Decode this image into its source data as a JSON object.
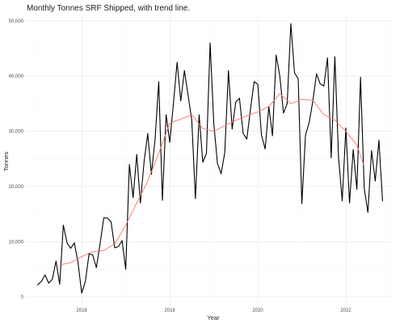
{
  "chart_data": {
    "type": "line",
    "title": "Monthly Tonnes SRF Shipped, with trend line.",
    "xlabel": "Year",
    "ylabel": "Tonnes",
    "xlim": [
      2014.75,
      2023.1
    ],
    "ylim": [
      -1500,
      51000
    ],
    "x_ticks": [
      2016,
      2018,
      2020,
      2022
    ],
    "x_tick_labels": [
      "2016",
      "2018",
      "2020",
      "2022"
    ],
    "y_ticks": [
      0,
      10000,
      20000,
      30000,
      40000,
      50000
    ],
    "y_tick_labels": [
      "0",
      "10,000",
      "20,000",
      "30,000",
      "40,000",
      "50,000"
    ],
    "grid": true,
    "legend": "none",
    "colors": {
      "series": "#000000",
      "trend": "#f8766d",
      "grid": "#ebebeb"
    },
    "series": [
      {
        "role": "data",
        "x": [
          2015.0,
          2015.083,
          2015.167,
          2015.25,
          2015.333,
          2015.417,
          2015.5,
          2015.583,
          2015.667,
          2015.75,
          2015.833,
          2015.917,
          2016.0,
          2016.083,
          2016.167,
          2016.25,
          2016.333,
          2016.417,
          2016.5,
          2016.583,
          2016.667,
          2016.75,
          2016.833,
          2016.917,
          2017.0,
          2017.083,
          2017.167,
          2017.25,
          2017.333,
          2017.417,
          2017.5,
          2017.583,
          2017.667,
          2017.75,
          2017.833,
          2017.917,
          2018.0,
          2018.083,
          2018.167,
          2018.25,
          2018.333,
          2018.417,
          2018.5,
          2018.583,
          2018.667,
          2018.75,
          2018.833,
          2018.917,
          2019.0,
          2019.083,
          2019.167,
          2019.25,
          2019.333,
          2019.417,
          2019.5,
          2019.583,
          2019.667,
          2019.75,
          2019.833,
          2019.917,
          2020.0,
          2020.083,
          2020.167,
          2020.25,
          2020.333,
          2020.417,
          2020.5,
          2020.583,
          2020.667,
          2020.75,
          2020.833,
          2020.917,
          2021.0,
          2021.083,
          2021.167,
          2021.25,
          2021.333,
          2021.417,
          2021.5,
          2021.583,
          2021.667,
          2021.75,
          2021.833,
          2021.917,
          2022.0,
          2022.083,
          2022.167,
          2022.25,
          2022.333,
          2022.417,
          2022.5,
          2022.583,
          2022.667,
          2022.75,
          2022.833
        ],
        "values": [
          2200,
          2800,
          4000,
          2500,
          3200,
          6500,
          2300,
          13000,
          9800,
          8800,
          9800,
          6200,
          700,
          2800,
          7800,
          7600,
          5300,
          9600,
          14300,
          14300,
          13600,
          8900,
          9100,
          10200,
          5000,
          24000,
          18000,
          25800,
          17000,
          24500,
          29600,
          22200,
          28600,
          39000,
          17500,
          33000,
          28000,
          35000,
          42500,
          35500,
          41000,
          36500,
          32000,
          17800,
          33000,
          24400,
          26000,
          46000,
          31400,
          24200,
          22300,
          26200,
          41000,
          30400,
          35300,
          36000,
          29600,
          28600,
          34000,
          39000,
          38500,
          29300,
          26800,
          34500,
          29200,
          43800,
          40000,
          33300,
          35000,
          49500,
          40600,
          39500,
          16900,
          29300,
          31600,
          35500,
          40400,
          38600,
          38200,
          43300,
          25200,
          43500,
          25400,
          17400,
          30600,
          17000,
          26700,
          19500,
          39800,
          19700,
          15300,
          26500,
          21000,
          28400,
          17400
        ]
      },
      {
        "role": "trend",
        "x": [
          2015.5,
          2015.75,
          2016.0,
          2016.25,
          2016.5,
          2016.75,
          2017.0,
          2017.25,
          2017.5,
          2017.75,
          2018.0,
          2018.25,
          2018.5,
          2018.75,
          2019.0,
          2019.25,
          2019.5,
          2019.75,
          2020.0,
          2020.25,
          2020.5,
          2020.75,
          2021.0,
          2021.25,
          2021.5,
          2021.75,
          2022.0,
          2022.25,
          2022.4
        ],
        "values": [
          5800,
          6200,
          7300,
          8200,
          8400,
          9600,
          13000,
          17000,
          21000,
          26000,
          31500,
          32200,
          33000,
          30500,
          30000,
          31000,
          32000,
          32800,
          33500,
          34500,
          36800,
          35000,
          35800,
          35600,
          33000,
          32000,
          30000,
          27500,
          24000
        ]
      }
    ]
  }
}
